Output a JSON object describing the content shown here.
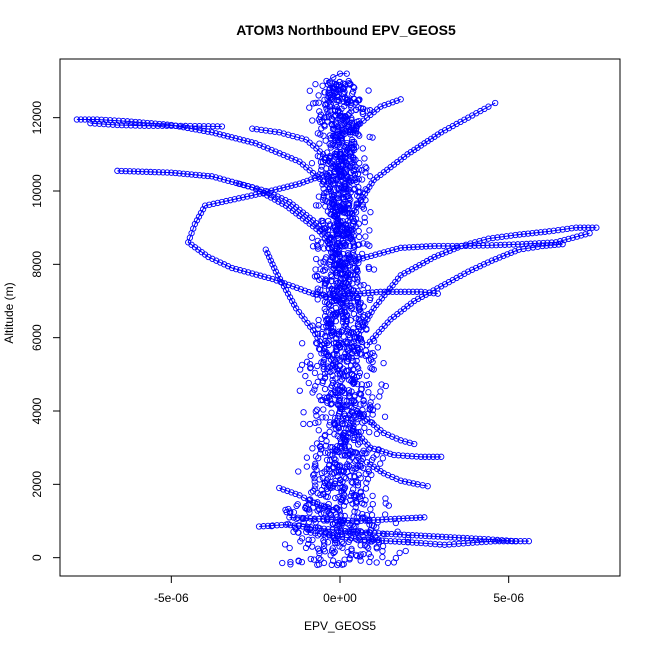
{
  "chart_data": {
    "type": "scatter",
    "title": "ATOM3 Northbound EPV_GEOS5",
    "xlabel": "EPV_GEOS5",
    "ylabel": "Altitude (m)",
    "xlim": [
      -8.3e-06,
      8.3e-06
    ],
    "ylim": [
      -500,
      13600
    ],
    "x_ticks": [
      {
        "value": -5e-06,
        "label": "-5e-06"
      },
      {
        "value": 0,
        "label": "0e+00"
      },
      {
        "value": 5e-06,
        "label": "5e-06"
      }
    ],
    "y_ticks": [
      {
        "value": 0,
        "label": "0"
      },
      {
        "value": 2000,
        "label": "2000"
      },
      {
        "value": 4000,
        "label": "4000"
      },
      {
        "value": 6000,
        "label": "6000"
      },
      {
        "value": 8000,
        "label": "8000"
      },
      {
        "value": 10000,
        "label": "10000"
      },
      {
        "value": 12000,
        "label": "12000"
      }
    ],
    "marker": "open-circle",
    "color": "#0000ff",
    "grid": false,
    "legend": "none",
    "series": [
      {
        "x": [
          0.0,
          -3e-07,
          -1.2e-06,
          -2.5e-06,
          -3.8e-06,
          -5e-06,
          -6.3e-06,
          -7.2e-06,
          -7.8e-06
        ],
        "y": [
          9000,
          10100,
          10800,
          11300,
          11600,
          11800,
          11900,
          11950,
          11950
        ]
      },
      {
        "x": [
          -7.4e-06,
          -6.6e-06,
          -5.8e-06,
          -5e-06,
          -4.3e-06,
          -3.5e-06
        ],
        "y": [
          11850,
          11800,
          11780,
          11780,
          11770,
          11760
        ]
      },
      {
        "x": [
          0.0,
          -6e-07,
          -1.6e-06,
          -2.6e-06,
          -3.8e-06,
          -5e-06,
          -6.6e-06
        ],
        "y": [
          8200,
          8900,
          9600,
          10100,
          10400,
          10500,
          10550
        ]
      },
      {
        "x": [
          2e-07,
          -8e-07,
          -2e-06,
          -3.2e-06,
          -3.9e-06,
          -4.5e-06,
          -4.3e-06,
          -4e-06,
          -2.5e-06,
          -1.2e-06,
          -3e-07
        ],
        "y": [
          7000,
          7200,
          7600,
          7900,
          8200,
          8600,
          9100,
          9600,
          9900,
          10200,
          10500
        ]
      },
      {
        "x": [
          0.0,
          -5e-07,
          -1e-06,
          -1.8e-06,
          -2.6e-06
        ],
        "y": [
          10500,
          11000,
          11400,
          11600,
          11700
        ]
      },
      {
        "x": [
          0.0,
          -8e-07,
          -1.5e-06,
          -2.2e-06,
          -3e-06
        ],
        "y": [
          8500,
          9200,
          9700,
          10000,
          10200
        ]
      },
      {
        "x": [
          -2e-07,
          -3e-07,
          -4e-07,
          -2e-07,
          0.0,
          2e-07
        ],
        "y": [
          12600,
          12800,
          13000,
          13100,
          13200,
          13200
        ]
      },
      {
        "x": [
          3e-07,
          8e-07,
          1.2e-06,
          1.8e-06
        ],
        "y": [
          11600,
          12000,
          12300,
          12500
        ]
      },
      {
        "x": [
          1e-07,
          1e-06,
          2e-06,
          3e-06,
          3.8e-06,
          4.4e-06,
          4.6e-06
        ],
        "y": [
          9000,
          10300,
          11000,
          11600,
          12000,
          12300,
          12400
        ]
      },
      {
        "x": [
          5e-07,
          1e-06,
          1.8e-06,
          2.8e-06,
          3.6e-06,
          4.4e-06,
          5.2e-06,
          6.2e-06,
          7e-06,
          7.6e-06
        ],
        "y": [
          6000,
          6800,
          7700,
          8200,
          8500,
          8700,
          8800,
          8900,
          9000,
          9000
        ]
      },
      {
        "x": [
          8e-07,
          1.5e-06,
          2.2e-06,
          3e-06,
          3.8e-06,
          4.5e-06,
          5.3e-06,
          6e-06,
          6.6e-06
        ],
        "y": [
          5800,
          6500,
          7000,
          7400,
          7800,
          8100,
          8400,
          8500,
          8550
        ]
      },
      {
        "x": [
          0.0,
          6e-07,
          1.2e-06,
          1.8e-06,
          2.4e-06,
          2.9e-06
        ],
        "y": [
          7200,
          7200,
          7250,
          7250,
          7250,
          7200
        ]
      },
      {
        "x": [
          1e-07,
          8e-07,
          1.8e-06,
          2.8e-06,
          3.6e-06,
          4.5e-06,
          5.4e-06,
          6.4e-06,
          7.4e-06
        ],
        "y": [
          8000,
          8200,
          8450,
          8500,
          8500,
          8520,
          8550,
          8600,
          8850
        ]
      },
      {
        "x": [
          4e-07,
          9e-07,
          1.6e-06,
          2.4e-06,
          3e-06
        ],
        "y": [
          3500,
          3000,
          2800,
          2750,
          2750
        ]
      },
      {
        "x": [
          -1e-06,
          -2e-07,
          6e-07,
          1.5e-06,
          2.4e-06,
          3.1e-06,
          3.8e-06,
          4.6e-06,
          5.6e-06
        ],
        "y": [
          700,
          600,
          500,
          450,
          400,
          350,
          400,
          450,
          450
        ]
      },
      {
        "x": [
          -2.4e-06,
          -1.6e-06,
          -6e-07,
          4e-07,
          1.4e-06,
          2.4e-06,
          3.4e-06,
          4.4e-06,
          5.2e-06
        ],
        "y": [
          850,
          900,
          800,
          700,
          650,
          600,
          550,
          500,
          450
        ]
      },
      {
        "x": [
          -1.5e-06,
          -5e-07,
          5e-07,
          1.5e-06,
          2.5e-06
        ],
        "y": [
          1100,
          1050,
          1000,
          1050,
          1100
        ]
      },
      {
        "x": [
          -1.8e-06,
          -1.2e-06,
          -8e-07,
          -2e-07
        ],
        "y": [
          1900,
          1700,
          1500,
          1300
        ]
      },
      {
        "x": [
          8e-07,
          1.3e-06,
          1.8e-06,
          2.3e-06,
          2.6e-06
        ],
        "y": [
          2600,
          2300,
          2100,
          2000,
          1950
        ]
      },
      {
        "x": [
          0.0,
          -4e-07,
          -8e-07,
          -1.3e-06,
          -1.6e-06,
          -1.9e-06,
          -2.1e-06,
          -2.2e-06
        ],
        "y": [
          5000,
          5600,
          6200,
          6800,
          7300,
          7800,
          8200,
          8400
        ]
      },
      {
        "x": [
          5e-07,
          9e-07,
          1.3e-06,
          1.8e-06,
          2.2e-06
        ],
        "y": [
          4000,
          3700,
          3400,
          3200,
          3100
        ]
      }
    ]
  }
}
